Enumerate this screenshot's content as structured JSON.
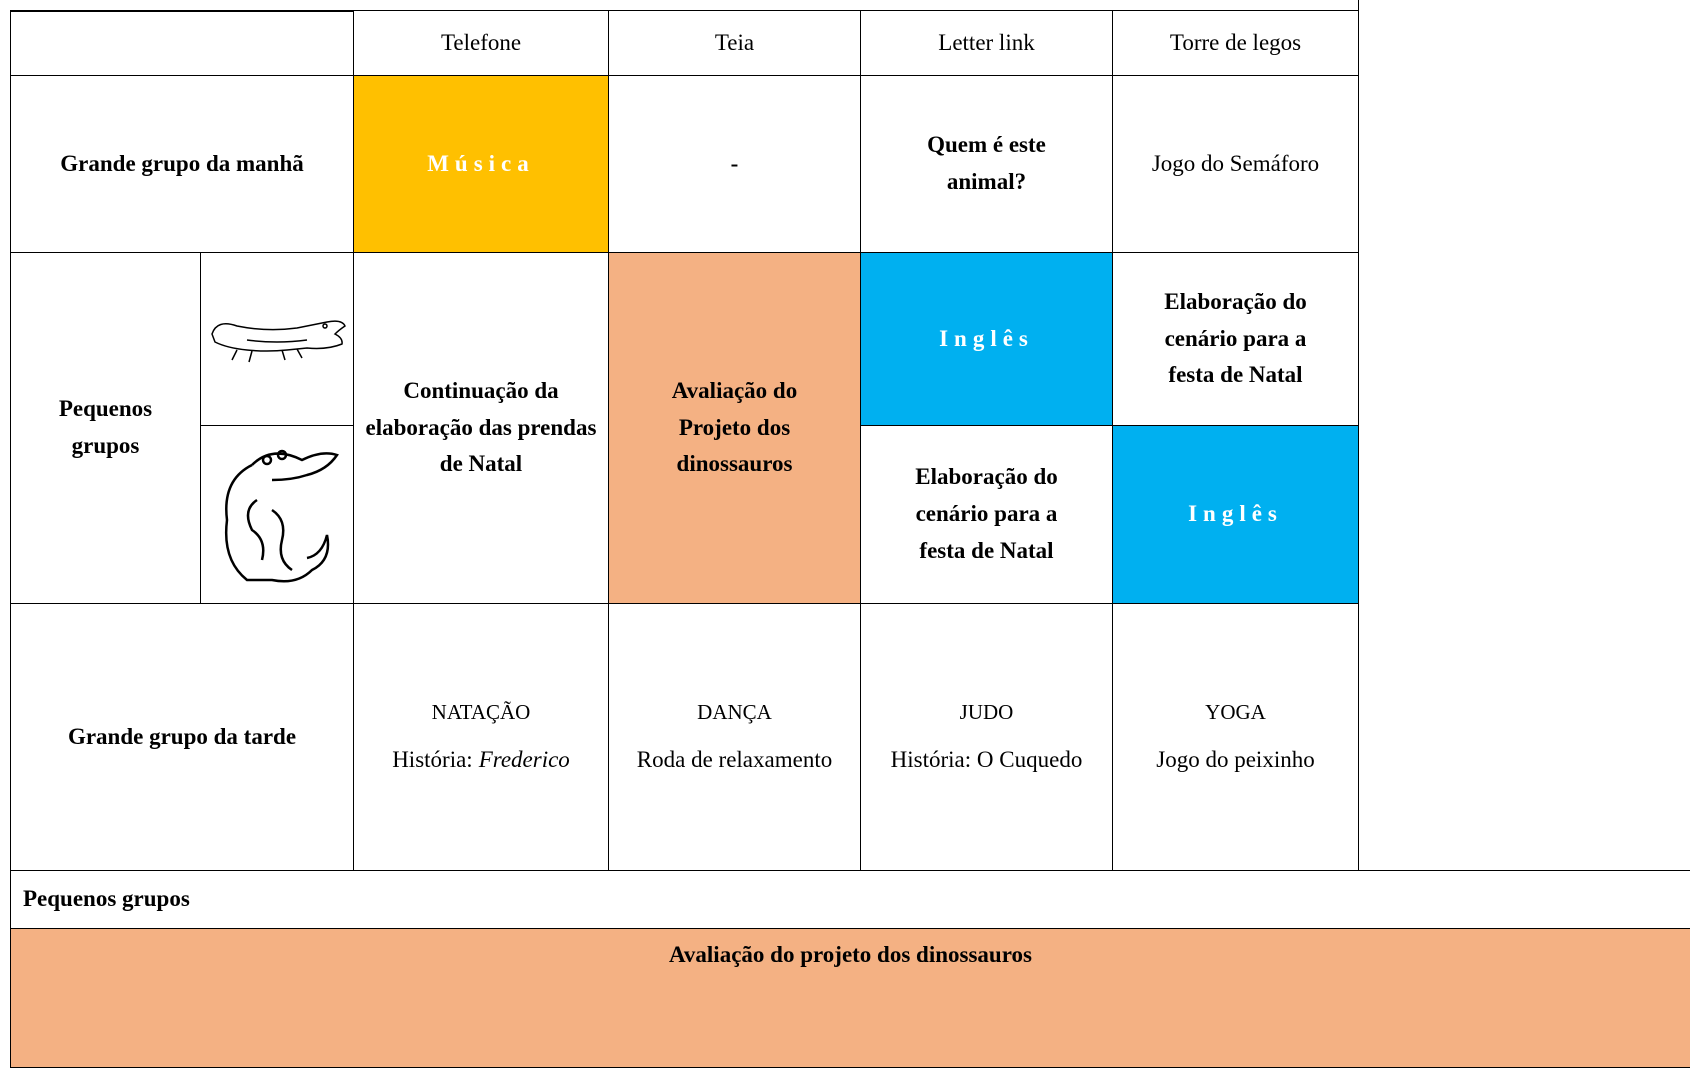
{
  "table": {
    "columns": [
      "Telefone",
      "Teia",
      "Letter link",
      "Torre de legos"
    ],
    "morning": {
      "label": "Grande grupo da manhã",
      "cells": [
        "Música",
        "-",
        "Quem é este animal?",
        "Jogo do Semáforo"
      ]
    },
    "small_groups": {
      "label": "Pequenos grupos",
      "telefone": "Continuação da elaboração das prendas de Natal",
      "teia": "Avaliação do Projeto dos dinossauros",
      "letter_link": [
        "Inglês",
        "Elaboração do cenário para a festa de Natal"
      ],
      "torre_de_legos": [
        "Elaboração do cenário para a festa de Natal",
        "Inglês"
      ]
    },
    "afternoon": {
      "label": "Grande grupo da tarde",
      "cells": [
        {
          "activity": "NATAÇÃO",
          "prefix": "História:",
          "title": "Frederico"
        },
        {
          "activity": "DANÇA",
          "text": "Roda de relaxamento"
        },
        {
          "activity": "JUDO",
          "text": "História: O Cuquedo"
        },
        {
          "activity": "YOGA",
          "text": "Jogo do peixinho"
        }
      ]
    },
    "footer": {
      "label": "Pequenos grupos",
      "banner": "Avaliação do projeto dos dinossauros"
    }
  }
}
